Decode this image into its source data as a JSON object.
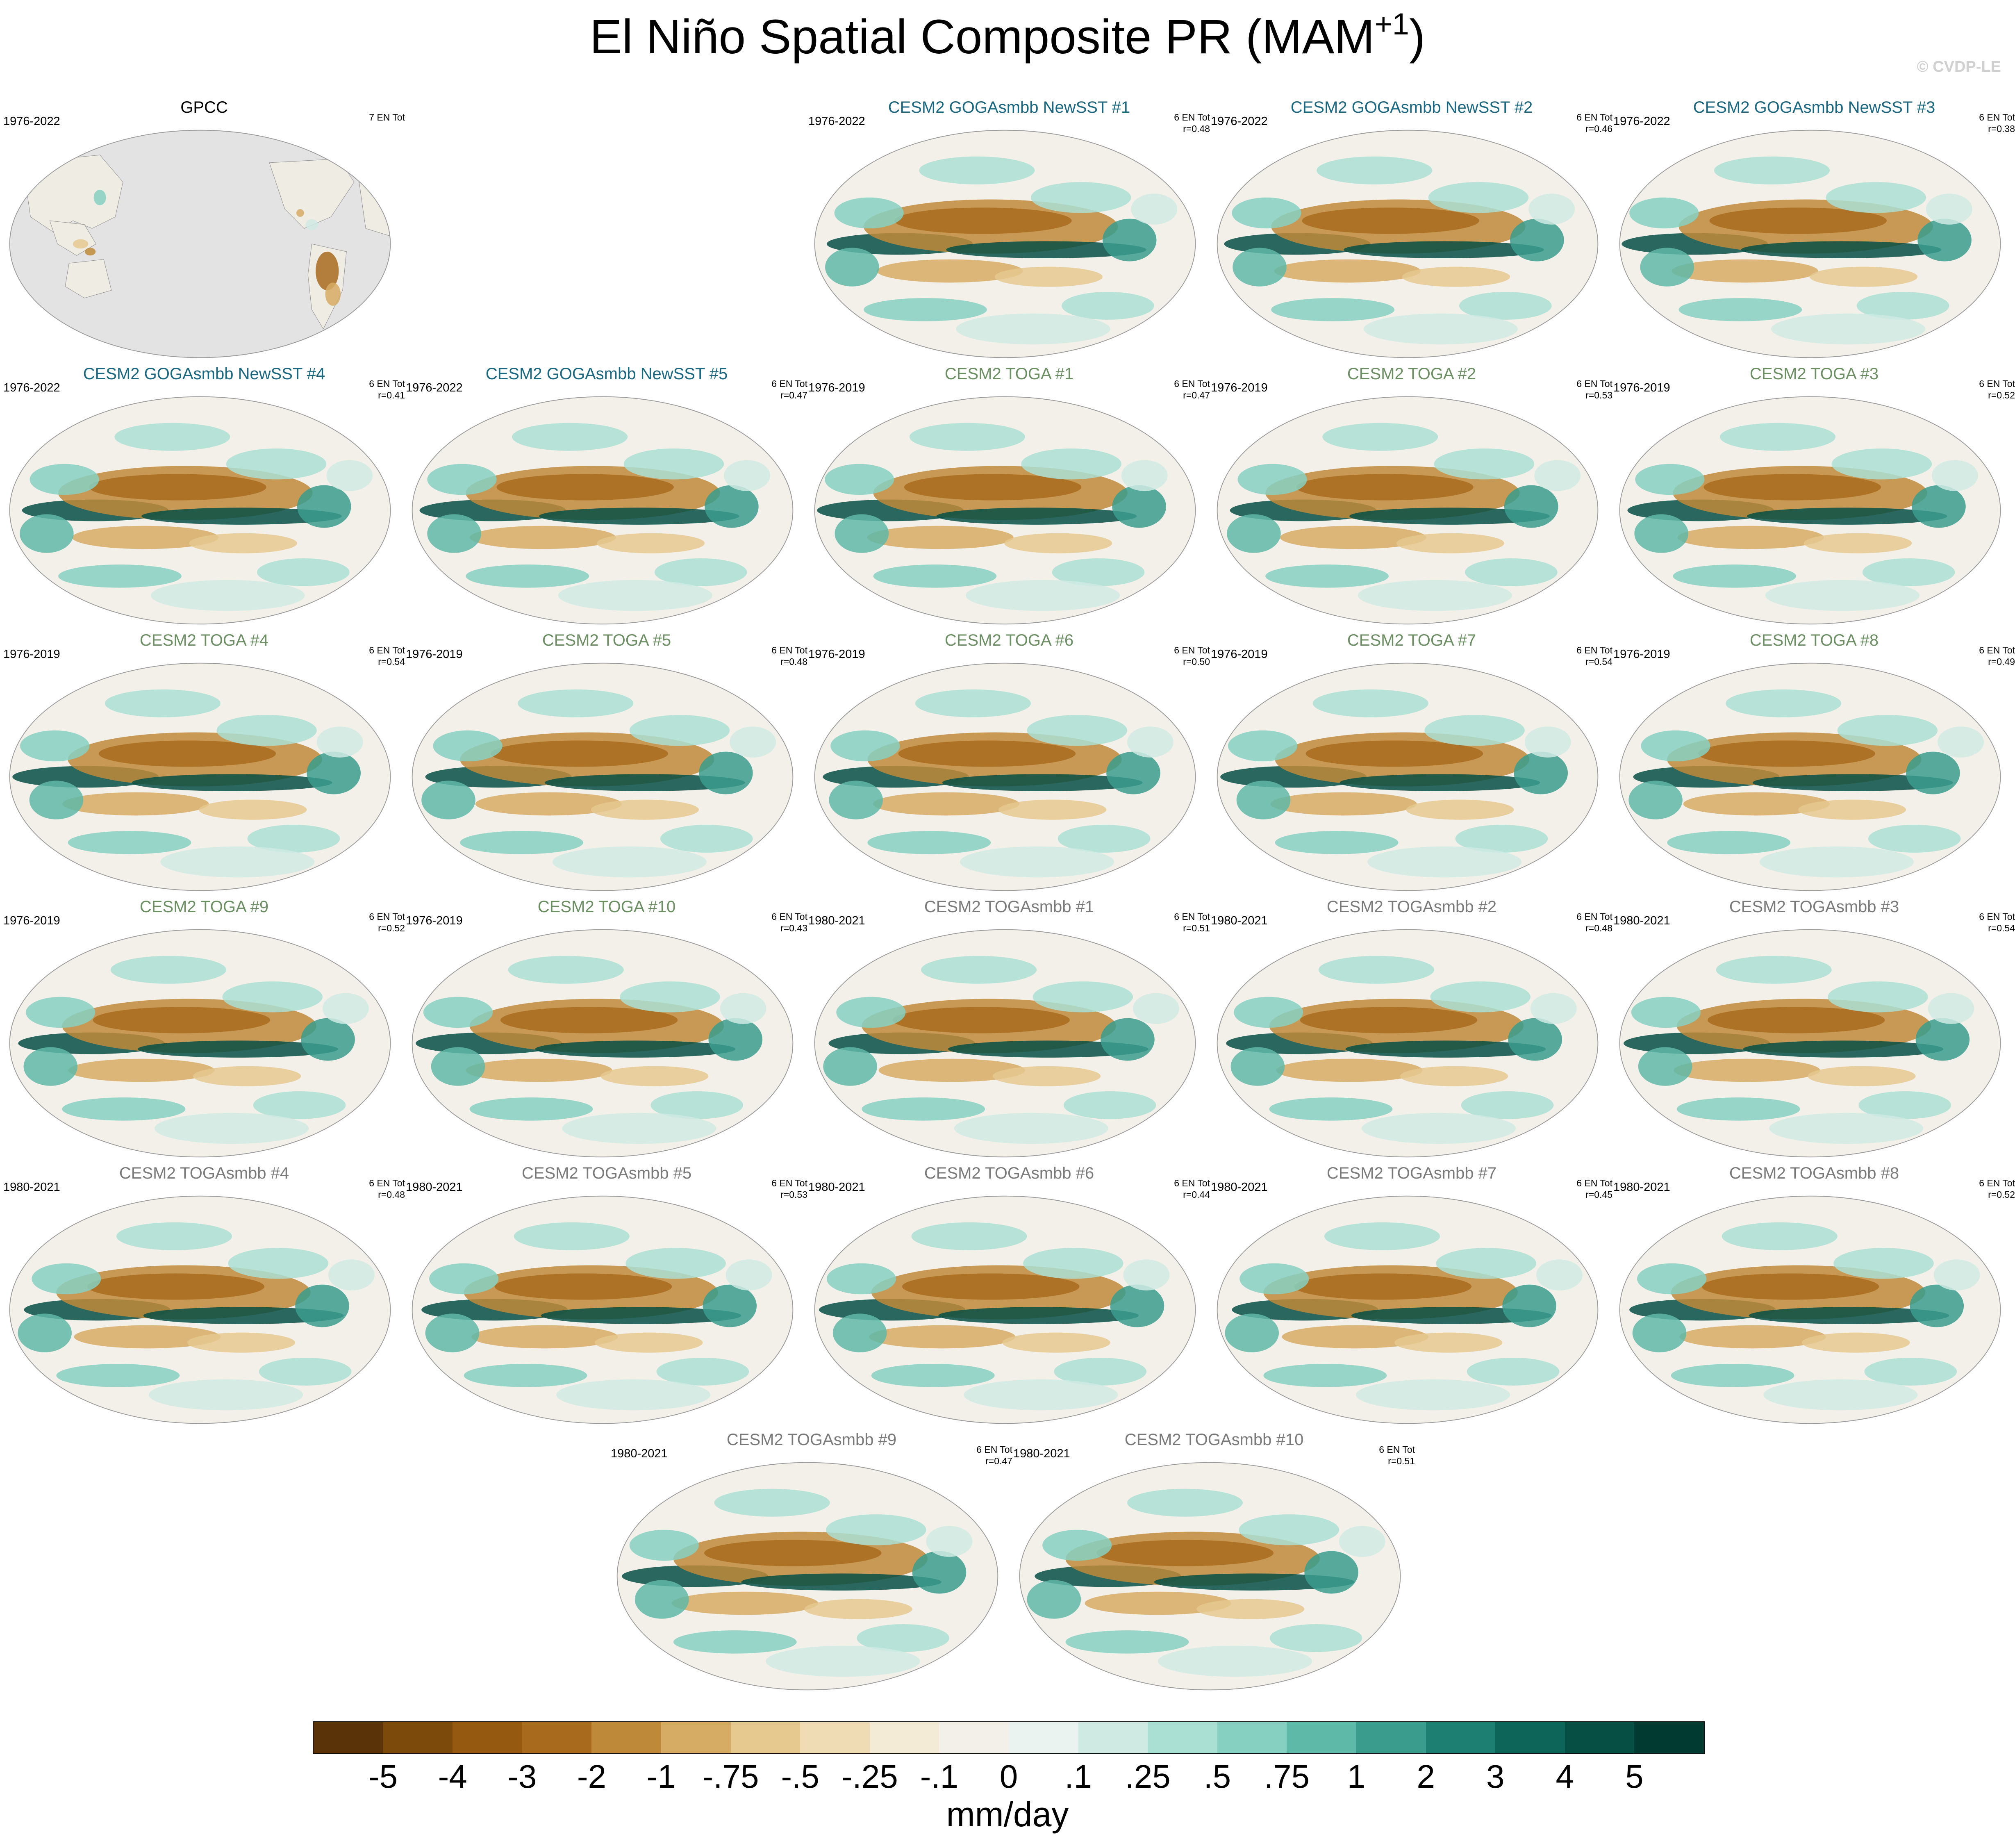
{
  "title": {
    "main": "El Niño Spatial Composite PR (MAM",
    "superscript": "+1",
    "close": ")"
  },
  "watermark": "© CVDP-LE",
  "colors": {
    "ocean_obs": "#e3e3e3",
    "land": "#efece4",
    "title_gogasst": "#1a6782",
    "title_toga": "#6b8f62",
    "title_togasmbb": "#7a7a7a",
    "title_obs": "#000000"
  },
  "panels": [
    {
      "title": "GPCC",
      "kind": "obs",
      "years": "1976-2022",
      "stats1": "7 EN Tot",
      "stats2": ""
    },
    {
      "title": "CESM2 GOGAsmbb NewSST #1",
      "kind": "gogasst",
      "years": "1976-2022",
      "stats1": "6 EN Tot",
      "stats2": "r=0.48"
    },
    {
      "title": "CESM2 GOGAsmbb NewSST #2",
      "kind": "gogasst",
      "years": "1976-2022",
      "stats1": "6 EN Tot",
      "stats2": "r=0.46"
    },
    {
      "title": "CESM2 GOGAsmbb NewSST #3",
      "kind": "gogasst",
      "years": "1976-2022",
      "stats1": "6 EN Tot",
      "stats2": "r=0.38"
    },
    {
      "title": "CESM2 GOGAsmbb NewSST #4",
      "kind": "gogasst",
      "years": "1976-2022",
      "stats1": "6 EN Tot",
      "stats2": "r=0.41"
    },
    {
      "title": "CESM2 GOGAsmbb NewSST #5",
      "kind": "gogasst",
      "years": "1976-2022",
      "stats1": "6 EN Tot",
      "stats2": "r=0.47"
    },
    {
      "title": "CESM2 TOGA #1",
      "kind": "toga",
      "years": "1976-2019",
      "stats1": "6 EN Tot",
      "stats2": "r=0.47"
    },
    {
      "title": "CESM2 TOGA #2",
      "kind": "toga",
      "years": "1976-2019",
      "stats1": "6 EN Tot",
      "stats2": "r=0.53"
    },
    {
      "title": "CESM2 TOGA #3",
      "kind": "toga",
      "years": "1976-2019",
      "stats1": "6 EN Tot",
      "stats2": "r=0.52"
    },
    {
      "title": "CESM2 TOGA #4",
      "kind": "toga",
      "years": "1976-2019",
      "stats1": "6 EN Tot",
      "stats2": "r=0.54"
    },
    {
      "title": "CESM2 TOGA #5",
      "kind": "toga",
      "years": "1976-2019",
      "stats1": "6 EN Tot",
      "stats2": "r=0.48"
    },
    {
      "title": "CESM2 TOGA #6",
      "kind": "toga",
      "years": "1976-2019",
      "stats1": "6 EN Tot",
      "stats2": "r=0.50"
    },
    {
      "title": "CESM2 TOGA #7",
      "kind": "toga",
      "years": "1976-2019",
      "stats1": "6 EN Tot",
      "stats2": "r=0.54"
    },
    {
      "title": "CESM2 TOGA #8",
      "kind": "toga",
      "years": "1976-2019",
      "stats1": "6 EN Tot",
      "stats2": "r=0.49"
    },
    {
      "title": "CESM2 TOGA #9",
      "kind": "toga",
      "years": "1976-2019",
      "stats1": "6 EN Tot",
      "stats2": "r=0.52"
    },
    {
      "title": "CESM2 TOGA #10",
      "kind": "toga",
      "years": "1976-2019",
      "stats1": "6 EN Tot",
      "stats2": "r=0.43"
    },
    {
      "title": "CESM2 TOGAsmbb #1",
      "kind": "togasmbb",
      "years": "1980-2021",
      "stats1": "6 EN Tot",
      "stats2": "r=0.51"
    },
    {
      "title": "CESM2 TOGAsmbb #2",
      "kind": "togasmbb",
      "years": "1980-2021",
      "stats1": "6 EN Tot",
      "stats2": "r=0.48"
    },
    {
      "title": "CESM2 TOGAsmbb #3",
      "kind": "togasmbb",
      "years": "1980-2021",
      "stats1": "6 EN Tot",
      "stats2": "r=0.54"
    },
    {
      "title": "CESM2 TOGAsmbb #4",
      "kind": "togasmbb",
      "years": "1980-2021",
      "stats1": "6 EN Tot",
      "stats2": "r=0.48"
    },
    {
      "title": "CESM2 TOGAsmbb #5",
      "kind": "togasmbb",
      "years": "1980-2021",
      "stats1": "6 EN Tot",
      "stats2": "r=0.53"
    },
    {
      "title": "CESM2 TOGAsmbb #6",
      "kind": "togasmbb",
      "years": "1980-2021",
      "stats1": "6 EN Tot",
      "stats2": "r=0.44"
    },
    {
      "title": "CESM2 TOGAsmbb #7",
      "kind": "togasmbb",
      "years": "1980-2021",
      "stats1": "6 EN Tot",
      "stats2": "r=0.45"
    },
    {
      "title": "CESM2 TOGAsmbb #8",
      "kind": "togasmbb",
      "years": "1980-2021",
      "stats1": "6 EN Tot",
      "stats2": "r=0.52"
    },
    {
      "title": "CESM2 TOGAsmbb #9",
      "kind": "togasmbb",
      "years": "1980-2021",
      "stats1": "6 EN Tot",
      "stats2": "r=0.47"
    },
    {
      "title": "CESM2 TOGAsmbb #10",
      "kind": "togasmbb",
      "years": "1980-2021",
      "stats1": "6 EN Tot",
      "stats2": "r=0.51"
    }
  ],
  "colorbar": {
    "units": "mm/day",
    "tick_labels": [
      "-5",
      "-4",
      "-3",
      "-2",
      "-1",
      "-.75",
      "-.5",
      "-.25",
      "-.1",
      "0",
      ".1",
      ".25",
      ".5",
      ".75",
      "1",
      "2",
      "3",
      "4",
      "5"
    ],
    "colors": [
      "#5a3408",
      "#7c4a0b",
      "#95590f",
      "#a86b1d",
      "#be8a3a",
      "#d6ab64",
      "#e5c98f",
      "#efdcb5",
      "#f3ebd6",
      "#f3f0ea",
      "#eaf3ef",
      "#cfeae3",
      "#aadfd4",
      "#86d0c2",
      "#5fb9a8",
      "#3a9c8d",
      "#1d7e72",
      "#0d6559",
      "#064f45",
      "#003a30"
    ]
  }
}
